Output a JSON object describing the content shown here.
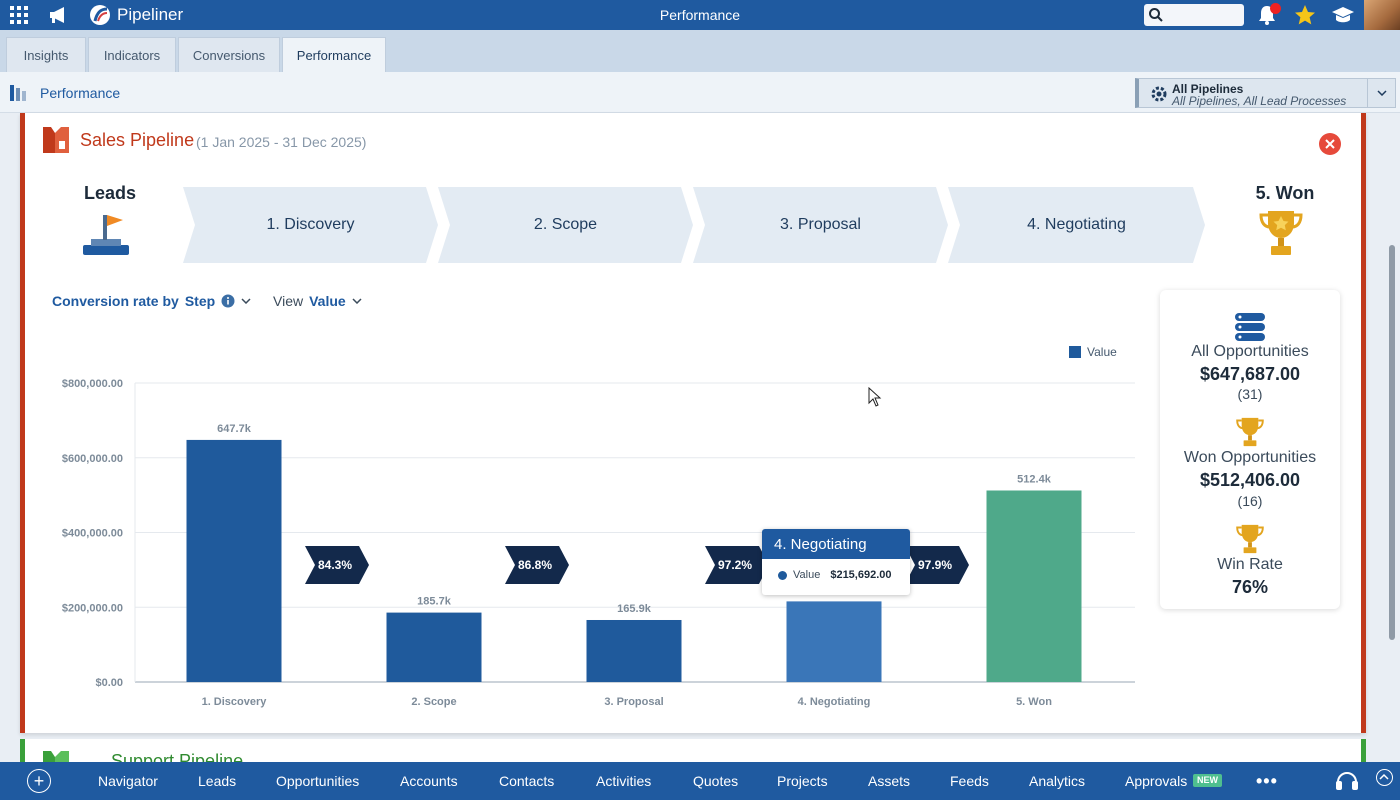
{
  "app": {
    "name": "Pipeliner",
    "page_title": "Performance"
  },
  "tabs": [
    {
      "label": "Insights"
    },
    {
      "label": "Indicators"
    },
    {
      "label": "Conversions"
    },
    {
      "label": "Performance"
    }
  ],
  "breadcrumb": {
    "label": "Performance"
  },
  "pipeline_selector": {
    "title": "All Pipelines",
    "subtitle": "All Pipelines, All Lead Processes"
  },
  "card": {
    "title": "Sales Pipeline",
    "date_range": "(1 Jan 2025 - 31 Dec 2025)",
    "leads_label": "Leads",
    "won_label": "5. Won",
    "stages": [
      "1. Discovery",
      "2. Scope",
      "3. Proposal",
      "4. Negotiating"
    ],
    "conversion_label_1": "Conversion rate by",
    "conversion_label_2": "Step",
    "view_label": "View",
    "view_value": "Value"
  },
  "summary": {
    "all_label": "All Opportunities",
    "all_value": "$647,687.00",
    "all_count": "(31)",
    "won_label": "Won Opportunities",
    "won_value": "$512,406.00",
    "won_count": "(16)",
    "rate_label": "Win Rate",
    "rate_value": "76%"
  },
  "tooltip": {
    "title": "4. Negotiating",
    "series": "Value",
    "value": "$215,692.00"
  },
  "next_card": {
    "title": "Support Pipeline"
  },
  "colors": {
    "brand": "#1f5aa0",
    "bar": "#1f5a9c",
    "bar_highlight": "#3a76b8",
    "won_bar": "#4fa98a",
    "card_accent": "#c0391b",
    "arrow": "#13294b"
  },
  "chart_data": {
    "type": "bar",
    "categories": [
      "1. Discovery",
      "2. Scope",
      "3. Proposal",
      "4. Negotiating",
      "5. Won"
    ],
    "series": [
      {
        "name": "Value",
        "values": [
          647700,
          185700,
          165900,
          215692,
          512400
        ]
      }
    ],
    "data_labels": [
      "647.7k",
      "185.7k",
      "165.9k",
      "",
      "512.4k"
    ],
    "conversion_rates": [
      "84.3%",
      "86.8%",
      "97.2%",
      "97.9%"
    ],
    "y_ticks": [
      "$0.00",
      "$200,000.00",
      "$400,000.00",
      "$600,000.00",
      "$800,000.00"
    ],
    "ylim": [
      0,
      800000
    ],
    "grid": true,
    "legend": "top-right"
  },
  "bottom_nav": [
    {
      "label": "Navigator"
    },
    {
      "label": "Leads"
    },
    {
      "label": "Opportunities"
    },
    {
      "label": "Accounts"
    },
    {
      "label": "Contacts"
    },
    {
      "label": "Activities"
    },
    {
      "label": "Quotes"
    },
    {
      "label": "Projects"
    },
    {
      "label": "Assets"
    },
    {
      "label": "Feeds"
    },
    {
      "label": "Analytics"
    },
    {
      "label": "Approvals"
    }
  ],
  "badges": {
    "new": "NEW"
  }
}
